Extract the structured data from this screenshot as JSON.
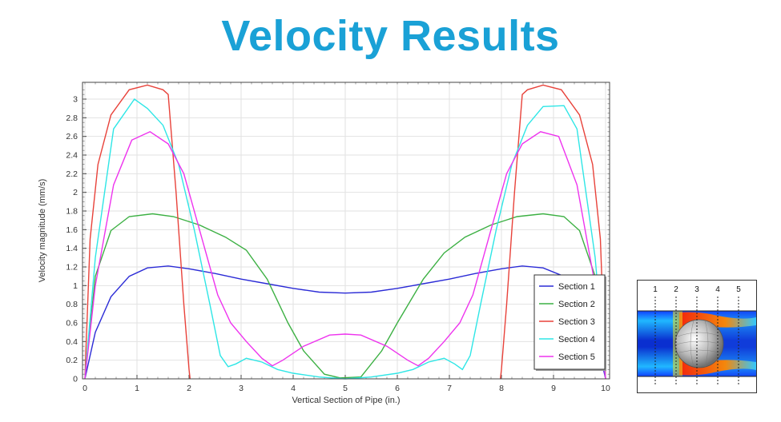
{
  "title": "Velocity Results",
  "chart_data": {
    "type": "line",
    "xlabel": "Vertical Section of Pipe (in.)",
    "ylabel": "Velocity magnitude (mm/s)",
    "xlim": [
      0,
      10
    ],
    "ylim": [
      0,
      3.1
    ],
    "xticks": [
      "0",
      "1",
      "2",
      "3",
      "4",
      "5",
      "6",
      "7",
      "8",
      "9",
      "10"
    ],
    "yticks": [
      "0",
      "0.2",
      "0.4",
      "0.6",
      "0.8",
      "1",
      "1.2",
      "1.4",
      "1.6",
      "1.8",
      "2",
      "2.2",
      "2.4",
      "2.6",
      "2.8",
      "3"
    ],
    "grid": true,
    "legend_position": "bottom-right",
    "series": [
      {
        "name": "Section 1",
        "color": "#2b2bd6",
        "points": [
          [
            0,
            0
          ],
          [
            0.2,
            0.5
          ],
          [
            0.5,
            0.88
          ],
          [
            0.85,
            1.1
          ],
          [
            1.2,
            1.19
          ],
          [
            1.6,
            1.21
          ],
          [
            2,
            1.18
          ],
          [
            2.5,
            1.13
          ],
          [
            3,
            1.07
          ],
          [
            3.5,
            1.02
          ],
          [
            4,
            0.97
          ],
          [
            4.5,
            0.93
          ],
          [
            5,
            0.92
          ],
          [
            5.5,
            0.93
          ],
          [
            6,
            0.97
          ],
          [
            6.5,
            1.02
          ],
          [
            7,
            1.07
          ],
          [
            7.5,
            1.13
          ],
          [
            8,
            1.18
          ],
          [
            8.4,
            1.21
          ],
          [
            8.8,
            1.19
          ],
          [
            9.2,
            1.1
          ],
          [
            9.5,
            0.88
          ],
          [
            9.8,
            0.5
          ],
          [
            10,
            0
          ]
        ]
      },
      {
        "name": "Section 2",
        "color": "#3cb043",
        "points": [
          [
            0,
            0
          ],
          [
            0.2,
            1.1
          ],
          [
            0.5,
            1.59
          ],
          [
            0.85,
            1.74
          ],
          [
            1.3,
            1.77
          ],
          [
            1.7,
            1.74
          ],
          [
            2.2,
            1.65
          ],
          [
            2.7,
            1.52
          ],
          [
            3.1,
            1.38
          ],
          [
            3.5,
            1.07
          ],
          [
            3.9,
            0.6
          ],
          [
            4.2,
            0.3
          ],
          [
            4.6,
            0.05
          ],
          [
            4.9,
            0.01
          ],
          [
            5.3,
            0.02
          ],
          [
            5.7,
            0.3
          ],
          [
            6,
            0.6
          ],
          [
            6.5,
            1.07
          ],
          [
            6.9,
            1.35
          ],
          [
            7.3,
            1.52
          ],
          [
            7.8,
            1.65
          ],
          [
            8.3,
            1.74
          ],
          [
            8.8,
            1.77
          ],
          [
            9.2,
            1.74
          ],
          [
            9.5,
            1.59
          ],
          [
            9.8,
            1.1
          ],
          [
            10,
            0
          ]
        ]
      },
      {
        "name": "Section 3",
        "color": "#e8423a",
        "points": [
          [
            0,
            0
          ],
          [
            0.1,
            1.5
          ],
          [
            0.25,
            2.3
          ],
          [
            0.5,
            2.83
          ],
          [
            0.85,
            3.1
          ],
          [
            1.2,
            3.15
          ],
          [
            1.5,
            3.1
          ],
          [
            1.6,
            3.05
          ],
          [
            1.75,
            2.0
          ],
          [
            1.9,
            0.8
          ],
          [
            2.0,
            0.1
          ],
          [
            2.02,
            0
          ]
        ],
        "points_right": [
          [
            7.98,
            0
          ],
          [
            8.0,
            0.1
          ],
          [
            8.1,
            0.8
          ],
          [
            8.25,
            2.0
          ],
          [
            8.4,
            3.05
          ],
          [
            8.5,
            3.1
          ],
          [
            8.8,
            3.15
          ],
          [
            9.15,
            3.1
          ],
          [
            9.5,
            2.83
          ],
          [
            9.75,
            2.3
          ],
          [
            9.9,
            1.5
          ],
          [
            10,
            0
          ]
        ]
      },
      {
        "name": "Section 4",
        "color": "#2ee6e6",
        "points": [
          [
            0,
            0
          ],
          [
            0.2,
            1.3
          ],
          [
            0.55,
            2.68
          ],
          [
            0.95,
            3.0
          ],
          [
            1.2,
            2.9
          ],
          [
            1.5,
            2.72
          ],
          [
            1.8,
            2.3
          ],
          [
            2.1,
            1.6
          ],
          [
            2.4,
            0.8
          ],
          [
            2.6,
            0.25
          ],
          [
            2.75,
            0.13
          ],
          [
            2.9,
            0.16
          ],
          [
            3.1,
            0.22
          ],
          [
            3.4,
            0.18
          ],
          [
            3.7,
            0.1
          ],
          [
            4.0,
            0.06
          ],
          [
            4.5,
            0.02
          ],
          [
            5,
            0.0
          ],
          [
            5.5,
            0.02
          ],
          [
            6.0,
            0.06
          ],
          [
            6.3,
            0.1
          ],
          [
            6.6,
            0.18
          ],
          [
            6.9,
            0.22
          ],
          [
            7.1,
            0.16
          ],
          [
            7.25,
            0.1
          ],
          [
            7.4,
            0.25
          ],
          [
            7.6,
            0.8
          ],
          [
            7.9,
            1.6
          ],
          [
            8.2,
            2.3
          ],
          [
            8.5,
            2.72
          ],
          [
            8.8,
            2.92
          ],
          [
            9.2,
            2.93
          ],
          [
            9.45,
            2.68
          ],
          [
            9.8,
            1.3
          ],
          [
            10,
            0
          ]
        ]
      },
      {
        "name": "Section 5",
        "color": "#ee33ee",
        "points": [
          [
            0,
            0
          ],
          [
            0.2,
            1.0
          ],
          [
            0.55,
            2.08
          ],
          [
            0.9,
            2.56
          ],
          [
            1.25,
            2.65
          ],
          [
            1.6,
            2.52
          ],
          [
            1.9,
            2.2
          ],
          [
            2.2,
            1.6
          ],
          [
            2.55,
            0.9
          ],
          [
            2.8,
            0.6
          ],
          [
            3.1,
            0.4
          ],
          [
            3.4,
            0.22
          ],
          [
            3.6,
            0.14
          ],
          [
            3.8,
            0.2
          ],
          [
            4.2,
            0.35
          ],
          [
            4.7,
            0.47
          ],
          [
            5.0,
            0.48
          ],
          [
            5.3,
            0.47
          ],
          [
            5.8,
            0.35
          ],
          [
            6.2,
            0.2
          ],
          [
            6.4,
            0.14
          ],
          [
            6.6,
            0.22
          ],
          [
            6.9,
            0.4
          ],
          [
            7.2,
            0.6
          ],
          [
            7.45,
            0.9
          ],
          [
            7.8,
            1.6
          ],
          [
            8.1,
            2.2
          ],
          [
            8.4,
            2.52
          ],
          [
            8.75,
            2.65
          ],
          [
            9.1,
            2.6
          ],
          [
            9.45,
            2.08
          ],
          [
            9.8,
            1.0
          ],
          [
            10,
            0
          ]
        ]
      }
    ]
  },
  "inset": {
    "labels": [
      "1",
      "2",
      "3",
      "4",
      "5"
    ]
  }
}
